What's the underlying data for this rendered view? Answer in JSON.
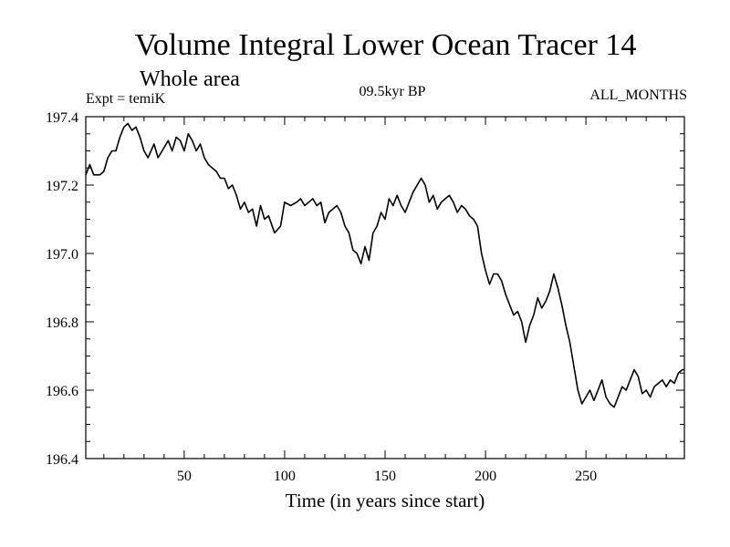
{
  "chart_data": {
    "type": "line",
    "title": "Volume Integral Lower Ocean Tracer 14",
    "subtitle": "Whole area",
    "expt_label": "Expt = temiK",
    "period_label": "09.5kyr BP",
    "months_label": "ALL_MONTHS",
    "xlabel": "Time (in years since start)",
    "ylabel": "",
    "xlim": [
      1,
      299
    ],
    "ylim": [
      196.4,
      197.4
    ],
    "xticks": [
      50,
      100,
      150,
      200,
      250
    ],
    "yticks": [
      196.4,
      196.6,
      196.8,
      197.0,
      197.2,
      197.4
    ],
    "ytick_labels": [
      "196.4",
      "196.6",
      "196.8",
      "197.0",
      "197.2",
      "197.4"
    ],
    "series": [
      {
        "name": "Lower Ocean Tracer 14",
        "color": "#000000",
        "x": [
          1,
          3,
          5,
          8,
          10,
          12,
          14,
          16,
          18,
          20,
          22,
          24,
          26,
          28,
          30,
          32,
          35,
          37,
          40,
          42,
          44,
          46,
          48,
          50,
          52,
          54,
          56,
          58,
          60,
          62,
          64,
          66,
          68,
          70,
          72,
          74,
          76,
          78,
          80,
          82,
          84,
          86,
          88,
          90,
          92,
          95,
          98,
          100,
          103,
          106,
          108,
          110,
          112,
          114,
          116,
          118,
          120,
          122,
          124,
          126,
          128,
          130,
          132,
          134,
          136,
          138,
          140,
          142,
          144,
          146,
          148,
          150,
          152,
          154,
          156,
          158,
          160,
          162,
          164,
          166,
          168,
          170,
          172,
          174,
          176,
          178,
          180,
          182,
          184,
          186,
          188,
          190,
          192,
          194,
          196,
          198,
          200,
          202,
          204,
          206,
          208,
          210,
          212,
          214,
          216,
          218,
          220,
          222,
          224,
          226,
          228,
          230,
          232,
          234,
          236,
          238,
          240,
          242,
          244,
          246,
          248,
          250,
          252,
          254,
          256,
          258,
          260,
          262,
          264,
          266,
          268,
          270,
          272,
          274,
          276,
          278,
          280,
          282,
          284,
          286,
          288,
          290,
          292,
          294,
          296,
          298,
          299
        ],
        "values": [
          197.23,
          197.26,
          197.23,
          197.23,
          197.24,
          197.28,
          197.3,
          197.3,
          197.34,
          197.37,
          197.38,
          197.36,
          197.37,
          197.34,
          197.3,
          197.28,
          197.32,
          197.28,
          197.31,
          197.33,
          197.3,
          197.34,
          197.33,
          197.3,
          197.35,
          197.33,
          197.3,
          197.32,
          197.28,
          197.26,
          197.25,
          197.24,
          197.22,
          197.22,
          197.19,
          197.2,
          197.17,
          197.13,
          197.15,
          197.12,
          197.13,
          197.08,
          197.14,
          197.1,
          197.11,
          197.06,
          197.08,
          197.15,
          197.14,
          197.15,
          197.16,
          197.14,
          197.15,
          197.16,
          197.14,
          197.15,
          197.09,
          197.12,
          197.13,
          197.14,
          197.12,
          197.08,
          197.06,
          197.01,
          197.0,
          196.97,
          197.02,
          196.98,
          197.06,
          197.08,
          197.12,
          197.1,
          197.16,
          197.14,
          197.17,
          197.14,
          197.12,
          197.15,
          197.18,
          197.2,
          197.22,
          197.2,
          197.15,
          197.17,
          197.13,
          197.15,
          197.16,
          197.17,
          197.15,
          197.12,
          197.14,
          197.13,
          197.11,
          197.1,
          197.08,
          197.0,
          196.95,
          196.91,
          196.94,
          196.94,
          196.92,
          196.88,
          196.85,
          196.82,
          196.83,
          196.8,
          196.74,
          196.79,
          196.82,
          196.87,
          196.84,
          196.86,
          196.89,
          196.94,
          196.9,
          196.85,
          196.79,
          196.74,
          196.67,
          196.6,
          196.56,
          196.58,
          196.6,
          196.57,
          196.6,
          196.63,
          196.58,
          196.56,
          196.55,
          196.58,
          196.61,
          196.6,
          196.63,
          196.66,
          196.64,
          196.59,
          196.6,
          196.58,
          196.61,
          196.62,
          196.63,
          196.61,
          196.63,
          196.62,
          196.65,
          196.66,
          196.66
        ]
      }
    ]
  }
}
